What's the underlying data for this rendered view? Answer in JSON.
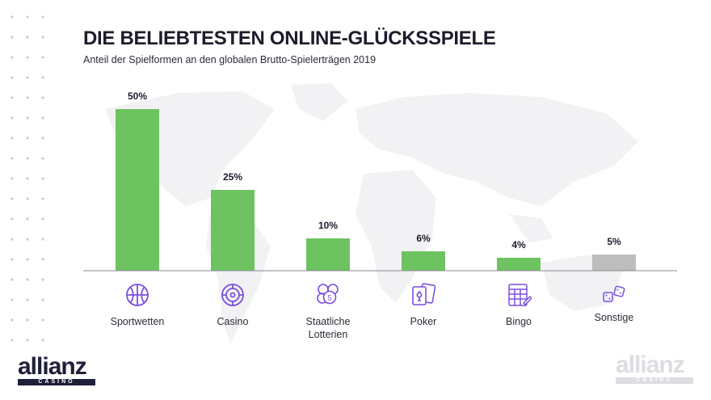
{
  "title": "DIE BELIEBTESTEN ONLINE-GLÜCKSSPIELE",
  "subtitle": "Anteil der Spielformen an den globalen Brutto-Spielerträgen 2019",
  "chart_data": {
    "type": "bar",
    "categories": [
      "Sportwetten",
      "Casino",
      "Staatliche Lotterien",
      "Poker",
      "Bingo",
      "Sonstige"
    ],
    "values": [
      50,
      25,
      10,
      6,
      4,
      5
    ],
    "value_labels": [
      "50%",
      "25%",
      "10%",
      "6%",
      "4%",
      "5%"
    ],
    "unit": "%",
    "ylim": [
      0,
      50
    ],
    "grid": false,
    "legend": "none"
  },
  "categories_display": [
    {
      "line1": "Sportwetten",
      "line2": "",
      "icon": "basketball-icon"
    },
    {
      "line1": "Casino",
      "line2": "",
      "icon": "roulette-wheel-icon"
    },
    {
      "line1": "Staatliche",
      "line2": "Lotterien",
      "icon": "lottery-balls-icon"
    },
    {
      "line1": "Poker",
      "line2": "",
      "icon": "playing-cards-icon"
    },
    {
      "line1": "Bingo",
      "line2": "",
      "icon": "bingo-card-icon"
    },
    {
      "line1": "Sonstige",
      "line2": "",
      "icon": "dice-icon"
    }
  ],
  "colors": {
    "bar": "#6cc35f",
    "bar_other": "#bdbdbd",
    "icon": "#7b4fe0",
    "title": "#1c1c2b",
    "map": "#f2f2f4"
  },
  "logo": {
    "word": "allianz",
    "sub": "CASINO"
  }
}
